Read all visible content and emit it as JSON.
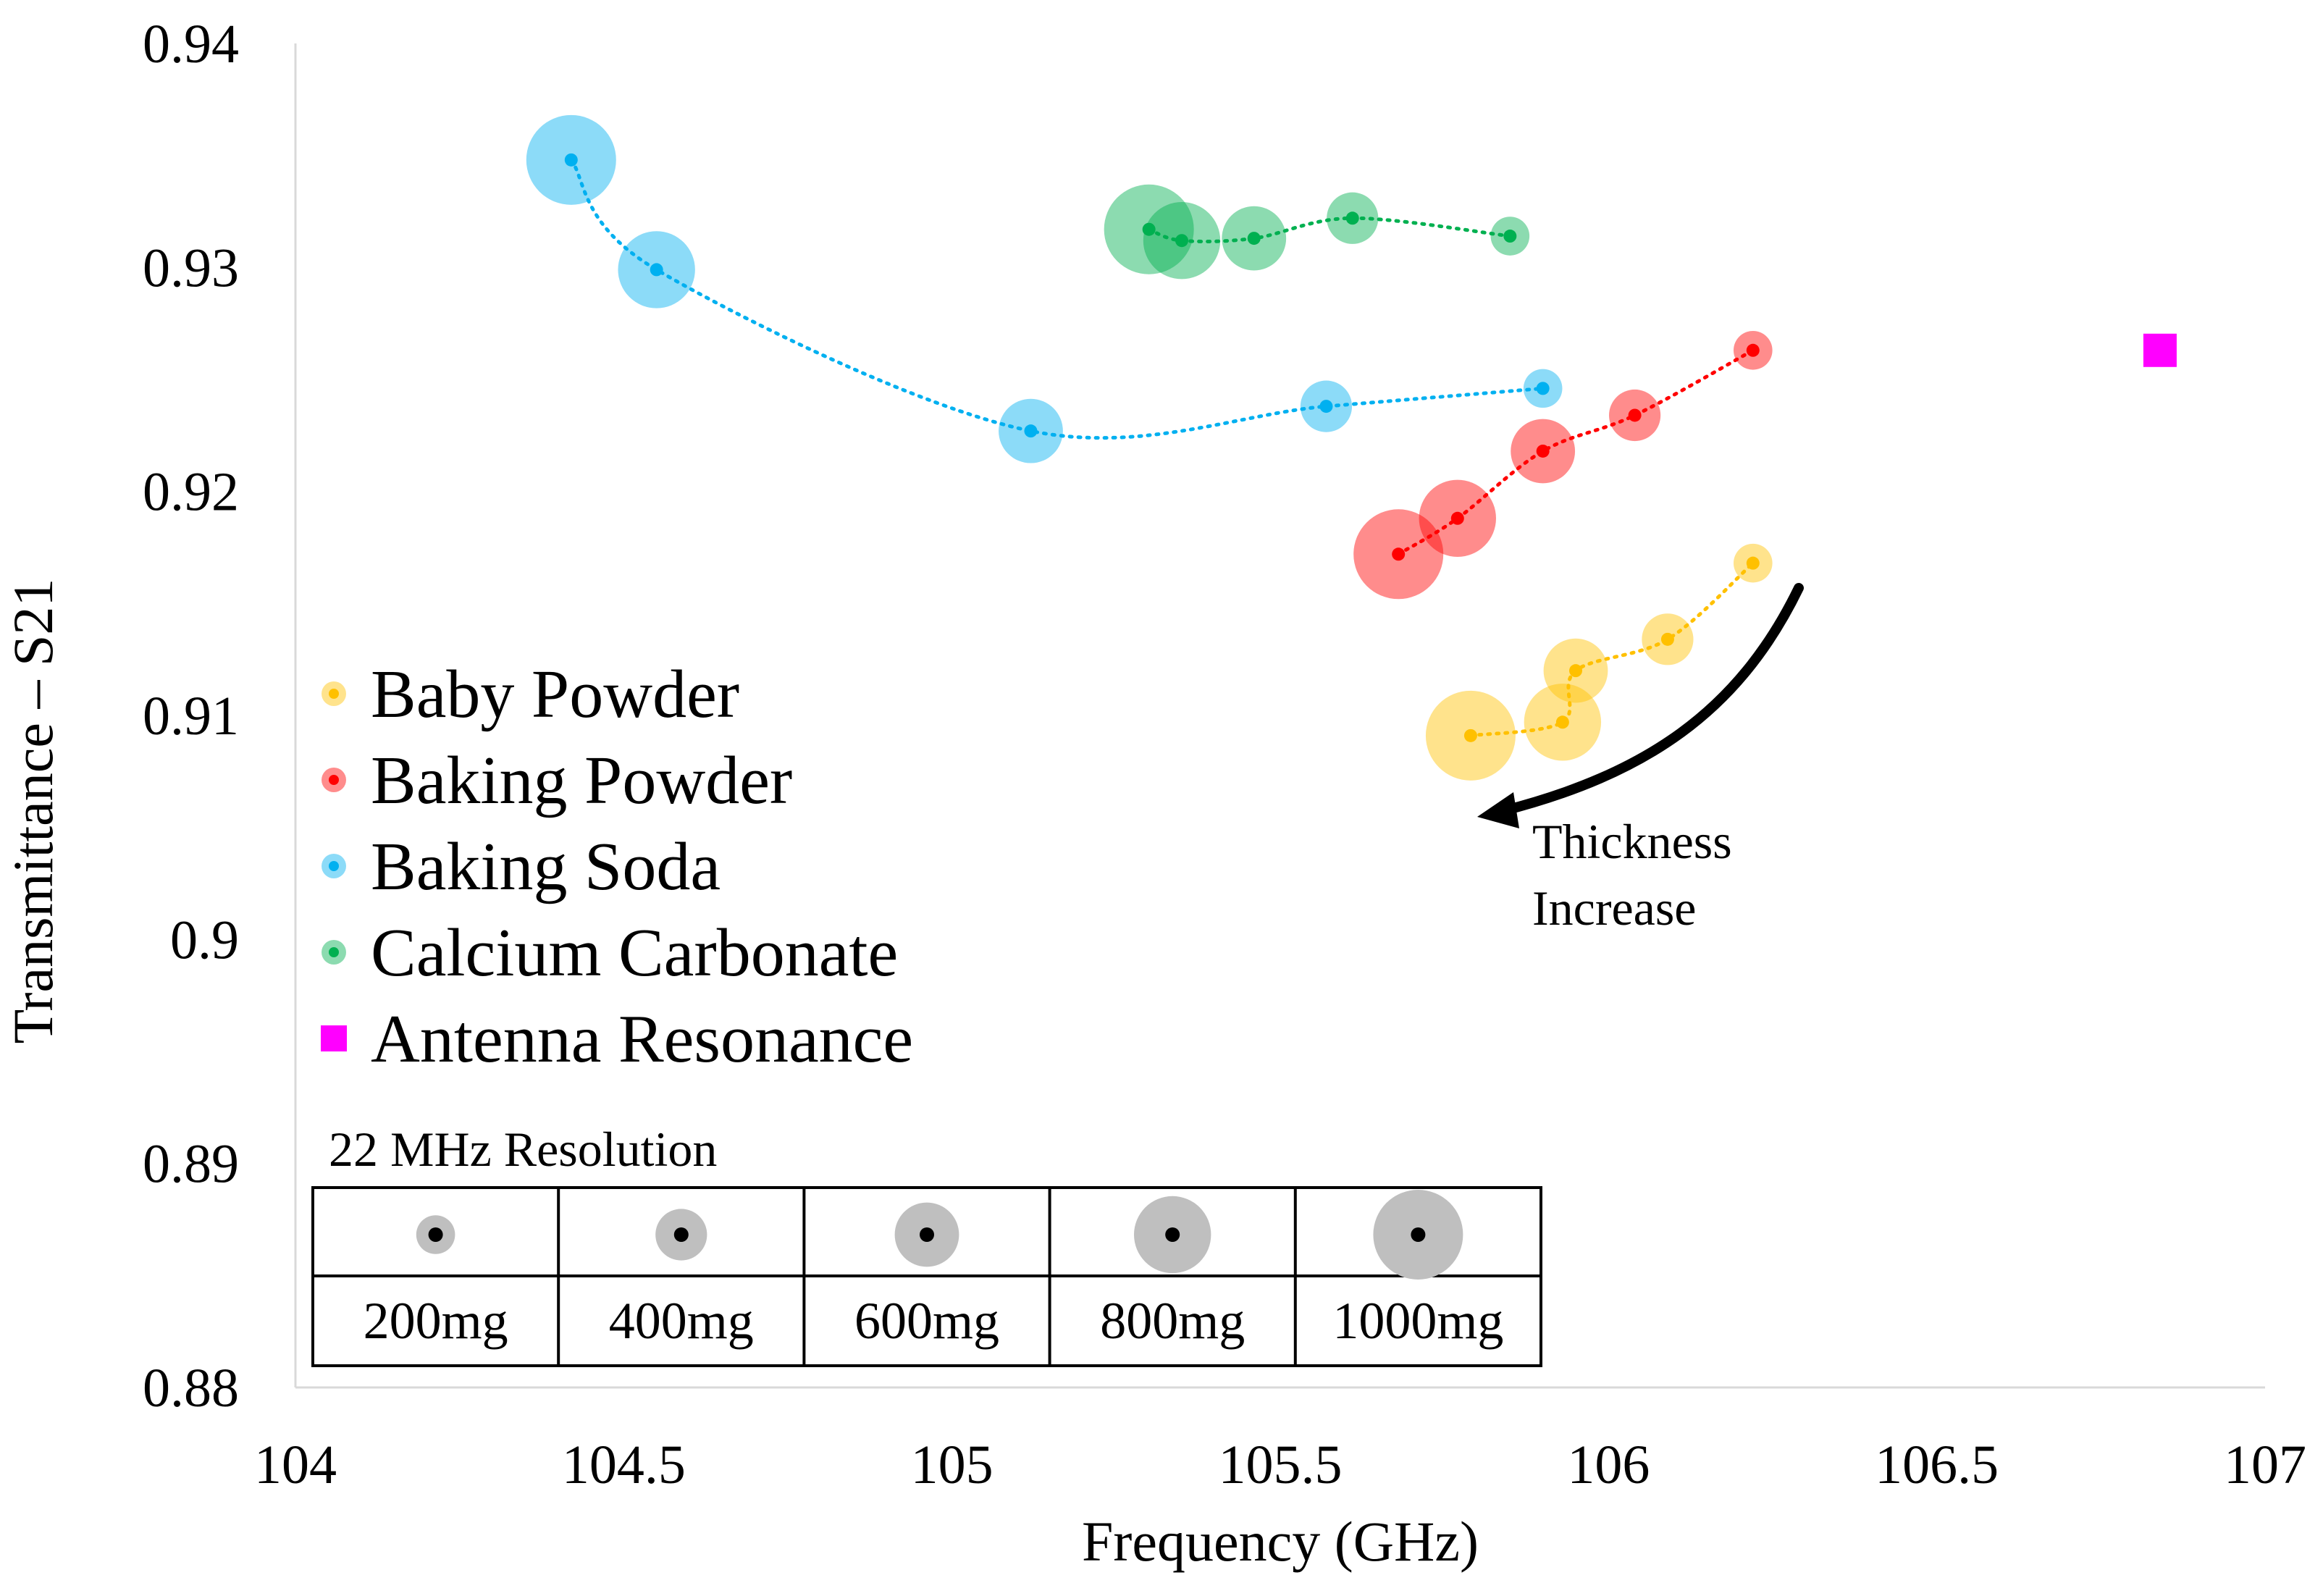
{
  "chart_data": {
    "type": "scatter",
    "title": "",
    "xlabel": "Frequency (GHz)",
    "ylabel": "Transmittance – S21",
    "xlim": [
      104,
      107
    ],
    "ylim": [
      0.88,
      0.94
    ],
    "xticks": [
      104,
      104.5,
      105,
      105.5,
      106,
      106.5,
      107
    ],
    "yticks": [
      0.88,
      0.89,
      0.9,
      0.91,
      0.92,
      0.93,
      0.94
    ],
    "xtick_labels": [
      "104",
      "104.5",
      "105",
      "105.5",
      "106",
      "106.5",
      "107"
    ],
    "ytick_labels": [
      "0.88",
      "0.89",
      "0.9",
      "0.91",
      "0.92",
      "0.93",
      "0.94"
    ],
    "grid": false,
    "legend_position": "left",
    "series": [
      {
        "name": "Baby Powder",
        "color": "#FFC000",
        "points": [
          {
            "x": 106.22,
            "y": 0.9168,
            "mass_mg": 200
          },
          {
            "x": 106.09,
            "y": 0.9134,
            "mass_mg": 400
          },
          {
            "x": 105.95,
            "y": 0.912,
            "mass_mg": 600
          },
          {
            "x": 105.93,
            "y": 0.9097,
            "mass_mg": 800
          },
          {
            "x": 105.79,
            "y": 0.9091,
            "mass_mg": 1000
          }
        ]
      },
      {
        "name": "Baking Powder",
        "color": "#FF0000",
        "points": [
          {
            "x": 106.22,
            "y": 0.9263,
            "mass_mg": 200
          },
          {
            "x": 106.04,
            "y": 0.9234,
            "mass_mg": 400
          },
          {
            "x": 105.9,
            "y": 0.9218,
            "mass_mg": 600
          },
          {
            "x": 105.77,
            "y": 0.9188,
            "mass_mg": 800
          },
          {
            "x": 105.68,
            "y": 0.9172,
            "mass_mg": 1000
          }
        ]
      },
      {
        "name": "Baking Soda",
        "color": "#00B0F0",
        "points": [
          {
            "x": 105.9,
            "y": 0.9246,
            "mass_mg": 200
          },
          {
            "x": 105.57,
            "y": 0.9238,
            "mass_mg": 400
          },
          {
            "x": 105.12,
            "y": 0.9227,
            "mass_mg": 600
          },
          {
            "x": 104.55,
            "y": 0.9299,
            "mass_mg": 800
          },
          {
            "x": 104.42,
            "y": 0.9348,
            "mass_mg": 1000
          }
        ]
      },
      {
        "name": "Calcium Carbonate",
        "color": "#00B050",
        "points": [
          {
            "x": 105.85,
            "y": 0.9314,
            "mass_mg": 200
          },
          {
            "x": 105.61,
            "y": 0.9322,
            "mass_mg": 400
          },
          {
            "x": 105.46,
            "y": 0.9313,
            "mass_mg": 600
          },
          {
            "x": 105.35,
            "y": 0.9312,
            "mass_mg": 800
          },
          {
            "x": 105.3,
            "y": 0.9317,
            "mass_mg": 1000
          }
        ]
      }
    ],
    "marker_series": {
      "name": "Antenna Resonance",
      "color": "#FF00FF",
      "x": 106.84,
      "y": 0.9263
    },
    "annotation": {
      "line1": "Thickness",
      "line2": "Increase"
    },
    "size_legend": {
      "title": "22 MHz Resolution",
      "entries": [
        {
          "label": "200mg",
          "mass_mg": 200
        },
        {
          "label": "400mg",
          "mass_mg": 400
        },
        {
          "label": "600mg",
          "mass_mg": 600
        },
        {
          "label": "800mg",
          "mass_mg": 800
        },
        {
          "label": "1000mg",
          "mass_mg": 1000
        }
      ]
    }
  }
}
